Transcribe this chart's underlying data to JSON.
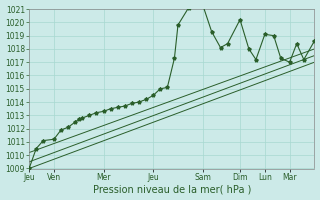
{
  "bg_color": "#cceae8",
  "grid_color": "#a8d8d0",
  "line_color": "#2a5e2a",
  "xlabel": "Pression niveau de la mer( hPa )",
  "ylim": [
    1009,
    1021
  ],
  "yticks": [
    1009,
    1010,
    1011,
    1012,
    1013,
    1014,
    1015,
    1016,
    1017,
    1018,
    1019,
    1020,
    1021
  ],
  "xtick_labels": [
    "Jeu",
    "Ven",
    "Mer",
    "Jeu",
    "Sam",
    "Dim",
    "Lun",
    "Mar"
  ],
  "xtick_positions": [
    0,
    14,
    42,
    70,
    98,
    119,
    133,
    147
  ],
  "xlim": [
    0,
    161
  ],
  "main_x": [
    0,
    4,
    8,
    14,
    18,
    22,
    26,
    28,
    30,
    34,
    38,
    42,
    46,
    50,
    54,
    58,
    62,
    66,
    70,
    74,
    78,
    82,
    84,
    90,
    98,
    103,
    108,
    112,
    119,
    124,
    128,
    133,
    138,
    142,
    147,
    151,
    155,
    161
  ],
  "main_y": [
    1009.0,
    1010.5,
    1011.1,
    1011.2,
    1011.9,
    1012.1,
    1012.5,
    1012.7,
    1012.8,
    1013.0,
    1013.2,
    1013.3,
    1013.5,
    1013.6,
    1013.7,
    1013.9,
    1014.0,
    1014.2,
    1014.5,
    1015.0,
    1015.1,
    1017.3,
    1019.8,
    1021.1,
    1021.3,
    1019.3,
    1018.1,
    1018.4,
    1020.2,
    1018.0,
    1017.2,
    1019.1,
    1019.0,
    1017.3,
    1017.0,
    1018.4,
    1017.2,
    1018.6
  ],
  "trend_lines": [
    {
      "x": [
        0,
        161
      ],
      "y": [
        1009.0,
        1017.0
      ]
    },
    {
      "x": [
        0,
        161
      ],
      "y": [
        1009.5,
        1017.5
      ]
    },
    {
      "x": [
        0,
        161
      ],
      "y": [
        1010.2,
        1018.0
      ]
    }
  ],
  "xlabel_fontsize": 7,
  "tick_fontsize": 5.5,
  "ylabel_fontsize": 6
}
